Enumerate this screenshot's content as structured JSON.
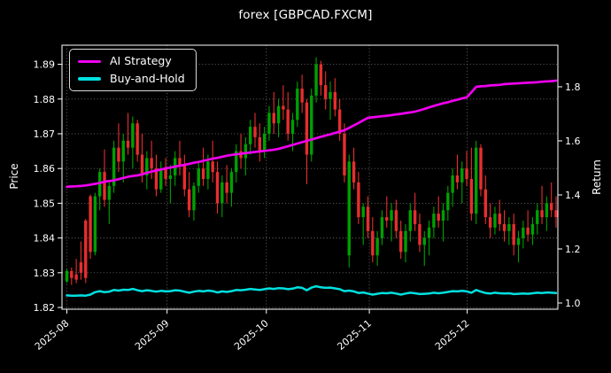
{
  "title": "forex [GBPCAD.FXCM]",
  "axes": {
    "price_label": "Price",
    "return_label": "Return"
  },
  "legend": {
    "items": [
      {
        "label": "AI Strategy",
        "color": "#f000f0"
      },
      {
        "label": "Buy-and-Hold",
        "color": "#00e0e0"
      }
    ]
  },
  "colors": {
    "background": "#000000",
    "foreground": "#ffffff"
  },
  "chart_data": {
    "type": "candlestick+line",
    "title": "forex [GBPCAD.FXCM]",
    "grid": {
      "show": true,
      "style": "dotted",
      "color": "#6e6e6e"
    },
    "price_axis": {
      "label": "Price",
      "side": "left",
      "ticks": [
        1.82,
        1.83,
        1.84,
        1.85,
        1.86,
        1.87,
        1.88,
        1.89
      ],
      "range": [
        1.8195,
        1.8955
      ]
    },
    "return_axis": {
      "label": "Return",
      "side": "right",
      "ticks": [
        1.0,
        1.2,
        1.4,
        1.6,
        1.8
      ],
      "range": [
        0.977,
        1.954
      ]
    },
    "x_axis": {
      "month_ticks": [
        {
          "label": "2025-08",
          "index": 0
        },
        {
          "label": "2025-09",
          "index": 21.3
        },
        {
          "label": "2025-10",
          "index": 42.4
        },
        {
          "label": "2025-11",
          "index": 64.3
        },
        {
          "label": "2025-12",
          "index": 85.1
        }
      ]
    },
    "candles": {
      "colors": {
        "up": "#00a000",
        "down": "#e62e2e"
      },
      "ohlc": [
        [
          1.8275,
          1.831,
          1.827,
          1.8305
        ],
        [
          1.8305,
          1.8315,
          1.8265,
          1.8285
        ],
        [
          1.8295,
          1.834,
          1.827,
          1.828
        ],
        [
          1.833,
          1.839,
          1.828,
          1.83
        ],
        [
          1.845,
          1.8455,
          1.827,
          1.8285
        ],
        [
          1.852,
          1.8525,
          1.834,
          1.836
        ],
        [
          1.836,
          1.853,
          1.835,
          1.852
        ],
        [
          1.852,
          1.86,
          1.848,
          1.859
        ],
        [
          1.859,
          1.8655,
          1.849,
          1.851
        ],
        [
          1.851,
          1.856,
          1.844,
          1.855
        ],
        [
          1.855,
          1.868,
          1.853,
          1.866
        ],
        [
          1.866,
          1.873,
          1.859,
          1.862
        ],
        [
          1.862,
          1.87,
          1.856,
          1.868
        ],
        [
          1.868,
          1.876,
          1.864,
          1.866
        ],
        [
          1.866,
          1.875,
          1.86,
          1.873
        ],
        [
          1.873,
          1.874,
          1.862,
          1.864
        ],
        [
          1.864,
          1.87,
          1.856,
          1.858
        ],
        [
          1.858,
          1.865,
          1.854,
          1.863
        ],
        [
          1.863,
          1.868,
          1.857,
          1.86
        ],
        [
          1.86,
          1.864,
          1.852,
          1.854
        ],
        [
          1.854,
          1.862,
          1.853,
          1.86
        ],
        [
          1.86,
          1.863,
          1.855,
          1.857
        ],
        [
          1.857,
          1.861,
          1.85,
          1.858
        ],
        [
          1.858,
          1.865,
          1.855,
          1.863
        ],
        [
          1.863,
          1.868,
          1.858,
          1.861
        ],
        [
          1.861,
          1.864,
          1.852,
          1.854
        ],
        [
          1.854,
          1.859,
          1.846,
          1.848
        ],
        [
          1.848,
          1.856,
          1.845,
          1.855
        ],
        [
          1.855,
          1.862,
          1.853,
          1.86
        ],
        [
          1.86,
          1.866,
          1.855,
          1.857
        ],
        [
          1.857,
          1.864,
          1.854,
          1.862
        ],
        [
          1.862,
          1.868,
          1.856,
          1.859
        ],
        [
          1.859,
          1.862,
          1.847,
          1.85
        ],
        [
          1.85,
          1.858,
          1.846,
          1.856
        ],
        [
          1.856,
          1.861,
          1.85,
          1.853
        ],
        [
          1.853,
          1.86,
          1.849,
          1.859
        ],
        [
          1.859,
          1.867,
          1.856,
          1.865
        ],
        [
          1.865,
          1.87,
          1.86,
          1.863
        ],
        [
          1.863,
          1.869,
          1.858,
          1.867
        ],
        [
          1.867,
          1.874,
          1.864,
          1.872
        ],
        [
          1.872,
          1.876,
          1.866,
          1.869
        ],
        [
          1.869,
          1.873,
          1.862,
          1.865
        ],
        [
          1.865,
          1.872,
          1.863,
          1.87
        ],
        [
          1.87,
          1.878,
          1.868,
          1.876
        ],
        [
          1.876,
          1.882,
          1.87,
          1.873
        ],
        [
          1.873,
          1.88,
          1.869,
          1.878
        ],
        [
          1.878,
          1.884,
          1.874,
          1.877
        ],
        [
          1.877,
          1.882,
          1.868,
          1.87
        ],
        [
          1.87,
          1.876,
          1.865,
          1.874
        ],
        [
          1.874,
          1.885,
          1.872,
          1.883
        ],
        [
          1.883,
          1.887,
          1.876,
          1.879
        ],
        [
          1.879,
          1.88,
          1.8555,
          1.864
        ],
        [
          1.864,
          1.883,
          1.862,
          1.881
        ],
        [
          1.881,
          1.892,
          1.879,
          1.89
        ],
        [
          1.89,
          1.891,
          1.881,
          1.884
        ],
        [
          1.884,
          1.888,
          1.877,
          1.88
        ],
        [
          1.88,
          1.885,
          1.874,
          1.882
        ],
        [
          1.882,
          1.886,
          1.875,
          1.877
        ],
        [
          1.877,
          1.88,
          1.868,
          1.87
        ],
        [
          1.87,
          1.873,
          1.856,
          1.858
        ],
        [
          1.835,
          1.864,
          1.8315,
          1.862
        ],
        [
          1.862,
          1.866,
          1.854,
          1.856
        ],
        [
          1.856,
          1.859,
          1.844,
          1.846
        ],
        [
          1.846,
          1.85,
          1.838,
          1.849
        ],
        [
          1.849,
          1.852,
          1.84,
          1.842
        ],
        [
          1.842,
          1.846,
          1.833,
          1.835
        ],
        [
          1.835,
          1.842,
          1.832,
          1.84
        ],
        [
          1.84,
          1.848,
          1.838,
          1.846
        ],
        [
          1.846,
          1.852,
          1.843,
          1.845
        ],
        [
          1.845,
          1.85,
          1.839,
          1.848
        ],
        [
          1.848,
          1.851,
          1.84,
          1.842
        ],
        [
          1.842,
          1.845,
          1.834,
          1.836
        ],
        [
          1.836,
          1.844,
          1.833,
          1.842
        ],
        [
          1.842,
          1.85,
          1.839,
          1.848
        ],
        [
          1.848,
          1.853,
          1.842,
          1.844
        ],
        [
          1.844,
          1.847,
          1.836,
          1.838
        ],
        [
          1.838,
          1.842,
          1.832,
          1.84
        ],
        [
          1.84,
          1.845,
          1.835,
          1.843
        ],
        [
          1.843,
          1.849,
          1.84,
          1.847
        ],
        [
          1.847,
          1.852,
          1.843,
          1.845
        ],
        [
          1.845,
          1.85,
          1.839,
          1.848
        ],
        [
          1.848,
          1.855,
          1.845,
          1.853
        ],
        [
          1.853,
          1.86,
          1.849,
          1.858
        ],
        [
          1.858,
          1.864,
          1.854,
          1.856
        ],
        [
          1.856,
          1.862,
          1.85,
          1.86
        ],
        [
          1.86,
          1.865,
          1.855,
          1.857
        ],
        [
          1.857,
          1.866,
          1.845,
          1.847
        ],
        [
          1.847,
          1.868,
          1.844,
          1.866
        ],
        [
          1.866,
          1.867,
          1.852,
          1.854
        ],
        [
          1.854,
          1.858,
          1.844,
          1.846
        ],
        [
          1.846,
          1.85,
          1.84,
          1.843
        ],
        [
          1.843,
          1.849,
          1.841,
          1.847
        ],
        [
          1.847,
          1.851,
          1.842,
          1.844
        ],
        [
          1.844,
          1.848,
          1.839,
          1.842
        ],
        [
          1.842,
          1.846,
          1.838,
          1.844
        ],
        [
          1.844,
          1.847,
          1.835,
          1.838
        ],
        [
          1.838,
          1.842,
          1.833,
          1.84
        ],
        [
          1.84,
          1.845,
          1.837,
          1.843
        ],
        [
          1.843,
          1.848,
          1.839,
          1.841
        ],
        [
          1.841,
          1.846,
          1.838,
          1.844
        ],
        [
          1.844,
          1.85,
          1.841,
          1.848
        ],
        [
          1.848,
          1.855,
          1.844,
          1.846
        ],
        [
          1.846,
          1.852,
          1.842,
          1.85
        ],
        [
          1.85,
          1.856,
          1.846,
          1.848
        ],
        [
          1.848,
          1.852,
          1.843,
          1.846
        ]
      ]
    },
    "series": [
      {
        "name": "AI Strategy",
        "axis": "return",
        "color": "#f000f0",
        "width": 2.7,
        "values": [
          1.43,
          1.431,
          1.432,
          1.433,
          1.435,
          1.438,
          1.441,
          1.444,
          1.449,
          1.451,
          1.454,
          1.458,
          1.463,
          1.467,
          1.47,
          1.472,
          1.476,
          1.482,
          1.486,
          1.49,
          1.494,
          1.498,
          1.501,
          1.505,
          1.508,
          1.511,
          1.515,
          1.519,
          1.522,
          1.526,
          1.53,
          1.534,
          1.537,
          1.541,
          1.545,
          1.548,
          1.55,
          1.552,
          1.555,
          1.557,
          1.559,
          1.561,
          1.563,
          1.565,
          1.567,
          1.57,
          1.575,
          1.58,
          1.585,
          1.59,
          1.595,
          1.6,
          1.605,
          1.61,
          1.615,
          1.62,
          1.624,
          1.629,
          1.634,
          1.639,
          1.648,
          1.657,
          1.666,
          1.676,
          1.685,
          1.687,
          1.689,
          1.691,
          1.693,
          1.695,
          1.698,
          1.7,
          1.703,
          1.705,
          1.708,
          1.713,
          1.718,
          1.724,
          1.729,
          1.734,
          1.739,
          1.743,
          1.748,
          1.752,
          1.757,
          1.761,
          1.78,
          1.8,
          1.802,
          1.803,
          1.805,
          1.806,
          1.807,
          1.81,
          1.811,
          1.812,
          1.813,
          1.814,
          1.815,
          1.816,
          1.817,
          1.819,
          1.82,
          1.821,
          1.823
        ]
      },
      {
        "name": "Buy-and-Hold",
        "axis": "return",
        "color": "#00e0e0",
        "width": 2.5,
        "values": [
          1.028,
          1.027,
          1.027,
          1.028,
          1.027,
          1.031,
          1.04,
          1.044,
          1.04,
          1.042,
          1.048,
          1.046,
          1.049,
          1.048,
          1.052,
          1.047,
          1.044,
          1.047,
          1.045,
          1.042,
          1.045,
          1.043,
          1.044,
          1.047,
          1.046,
          1.042,
          1.038,
          1.042,
          1.045,
          1.043,
          1.046,
          1.044,
          1.039,
          1.043,
          1.041,
          1.044,
          1.048,
          1.047,
          1.049,
          1.052,
          1.05,
          1.048,
          1.051,
          1.054,
          1.052,
          1.055,
          1.054,
          1.051,
          1.053,
          1.058,
          1.056,
          1.047,
          1.057,
          1.062,
          1.058,
          1.056,
          1.057,
          1.054,
          1.051,
          1.044,
          1.046,
          1.043,
          1.037,
          1.039,
          1.035,
          1.031,
          1.034,
          1.037,
          1.036,
          1.038,
          1.035,
          1.031,
          1.035,
          1.038,
          1.036,
          1.033,
          1.034,
          1.035,
          1.038,
          1.036,
          1.038,
          1.041,
          1.044,
          1.043,
          1.045,
          1.043,
          1.038,
          1.048,
          1.042,
          1.037,
          1.035,
          1.038,
          1.036,
          1.035,
          1.036,
          1.033,
          1.034,
          1.035,
          1.034,
          1.036,
          1.038,
          1.037,
          1.039,
          1.038,
          1.037
        ]
      }
    ]
  }
}
